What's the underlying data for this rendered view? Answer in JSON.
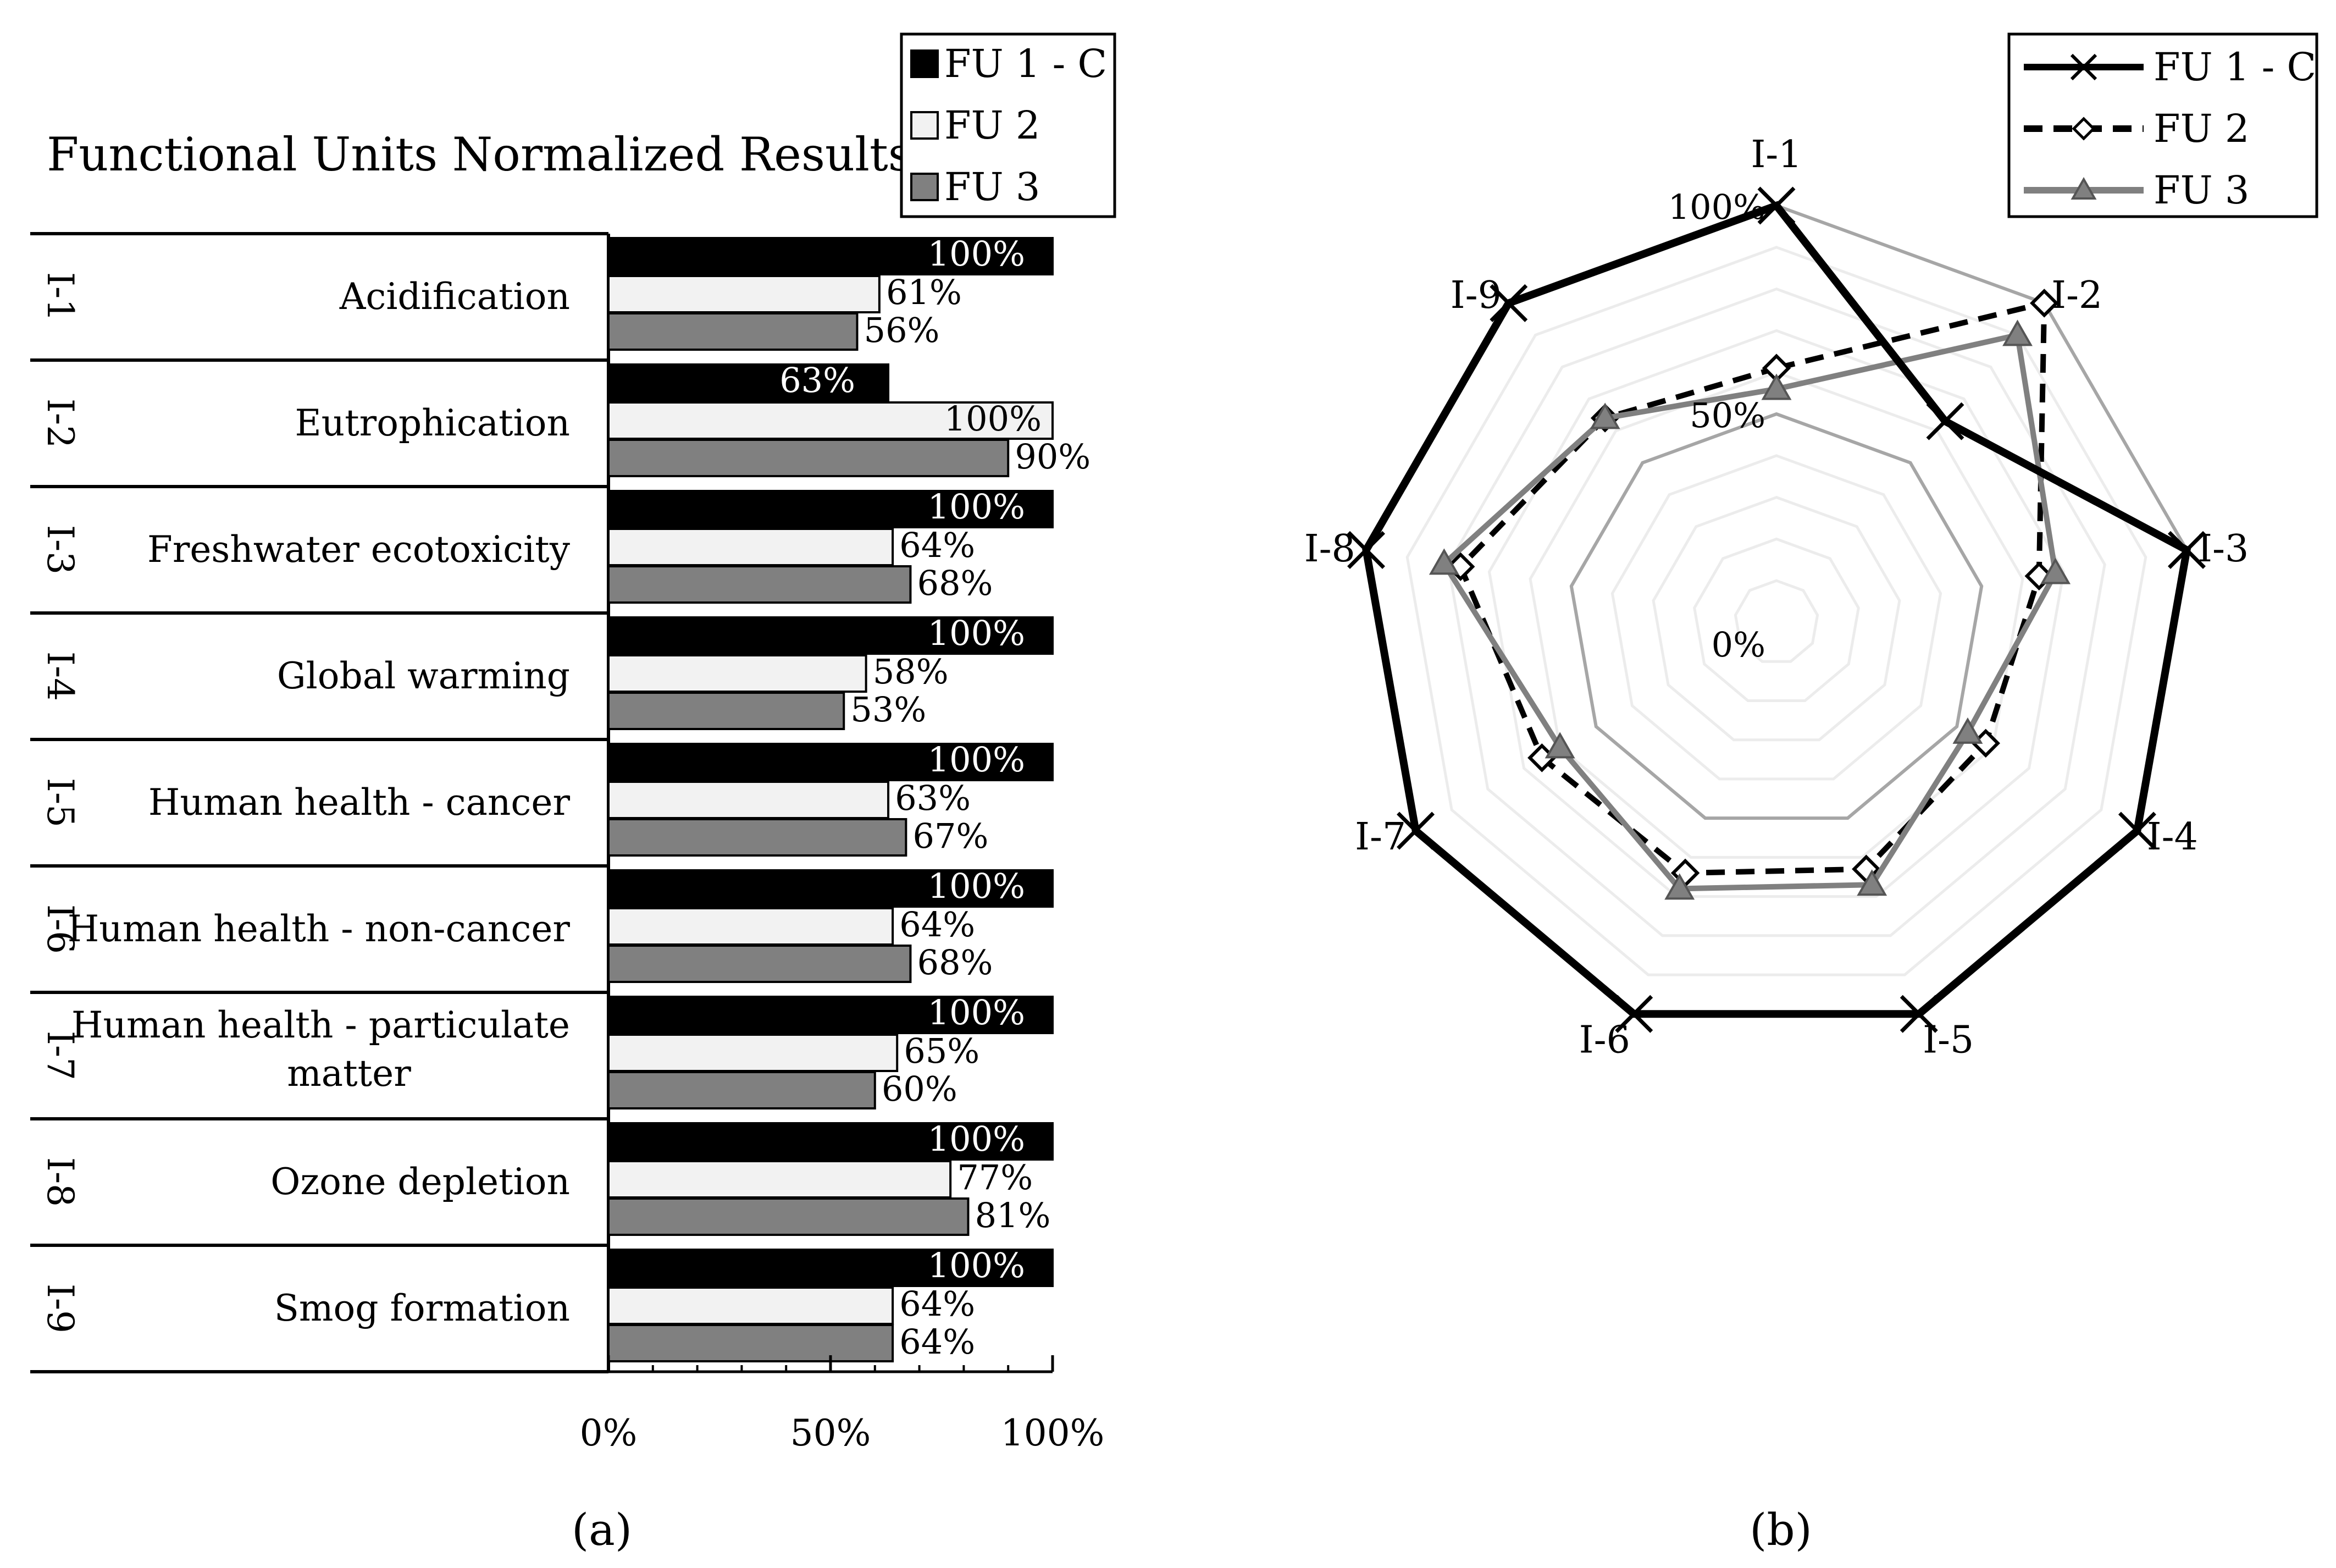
{
  "figure": {
    "panel_a_label": "(a)",
    "panel_b_label": "(b)"
  },
  "chart_data": [
    {
      "type": "bar",
      "orientation": "horizontal",
      "title": "Functional Units Normalized Results",
      "categories": [
        {
          "code": "I-1",
          "name": [
            "Acidification"
          ]
        },
        {
          "code": "I-2",
          "name": [
            "Eutrophication"
          ]
        },
        {
          "code": "I-3",
          "name": [
            "Freshwater ecotoxicity"
          ]
        },
        {
          "code": "I-4",
          "name": [
            "Global warming"
          ]
        },
        {
          "code": "I-5",
          "name": [
            "Human health - cancer"
          ]
        },
        {
          "code": "I-6",
          "name": [
            "Human health - non-cancer"
          ]
        },
        {
          "code": "I-7",
          "name": [
            "Human health - particulate",
            "matter"
          ]
        },
        {
          "code": "I-8",
          "name": [
            "Ozone depletion"
          ]
        },
        {
          "code": "I-9",
          "name": [
            "Smog formation"
          ]
        }
      ],
      "series": [
        {
          "name": "FU 1 - C",
          "color": "#000000",
          "values": [
            100,
            63,
            100,
            100,
            100,
            100,
            100,
            100,
            100
          ],
          "labels": [
            "100%",
            "63%",
            "100%",
            "100%",
            "100%",
            "100%",
            "100%",
            "100%",
            "100%"
          ]
        },
        {
          "name": "FU 2",
          "color": "#f2f2f2",
          "values": [
            61,
            100,
            64,
            58,
            63,
            64,
            65,
            77,
            64
          ],
          "labels": [
            "61%",
            "100%",
            "64%",
            "58%",
            "63%",
            "64%",
            "65%",
            "77%",
            "64%"
          ]
        },
        {
          "name": "FU 3",
          "color": "#808080",
          "values": [
            56,
            90,
            68,
            53,
            67,
            68,
            60,
            81,
            64
          ],
          "labels": [
            "56%",
            "90%",
            "68%",
            "53%",
            "67%",
            "68%",
            "60%",
            "81%",
            "64%"
          ]
        }
      ],
      "xlim": [
        0,
        100
      ],
      "xticks": [
        0,
        50,
        100
      ],
      "xtick_labels": [
        "0%",
        "50%",
        "100%"
      ],
      "legend": "top-right",
      "grid": false
    },
    {
      "type": "radar",
      "axes": [
        "I-1",
        "I-2",
        "I-3",
        "I-4",
        "I-5",
        "I-6",
        "I-7",
        "I-8",
        "I-9"
      ],
      "series": [
        {
          "name": "FU 1 - C",
          "color": "#000000",
          "style": "solid",
          "marker": "x",
          "values": [
            100,
            63,
            100,
            100,
            100,
            100,
            100,
            100,
            100
          ]
        },
        {
          "name": "FU 2",
          "color": "#000000",
          "style": "dashed",
          "marker": "diamond",
          "values": [
            61,
            100,
            64,
            58,
            63,
            64,
            65,
            77,
            64
          ]
        },
        {
          "name": "FU 3",
          "color": "#808080",
          "style": "solid",
          "marker": "triangle",
          "values": [
            56,
            90,
            68,
            53,
            67,
            68,
            60,
            81,
            64
          ]
        }
      ],
      "rlim": [
        0,
        100
      ],
      "ring_labels": [
        "0%",
        "50%",
        "100%"
      ],
      "legend": "top-right",
      "grid": true
    }
  ]
}
